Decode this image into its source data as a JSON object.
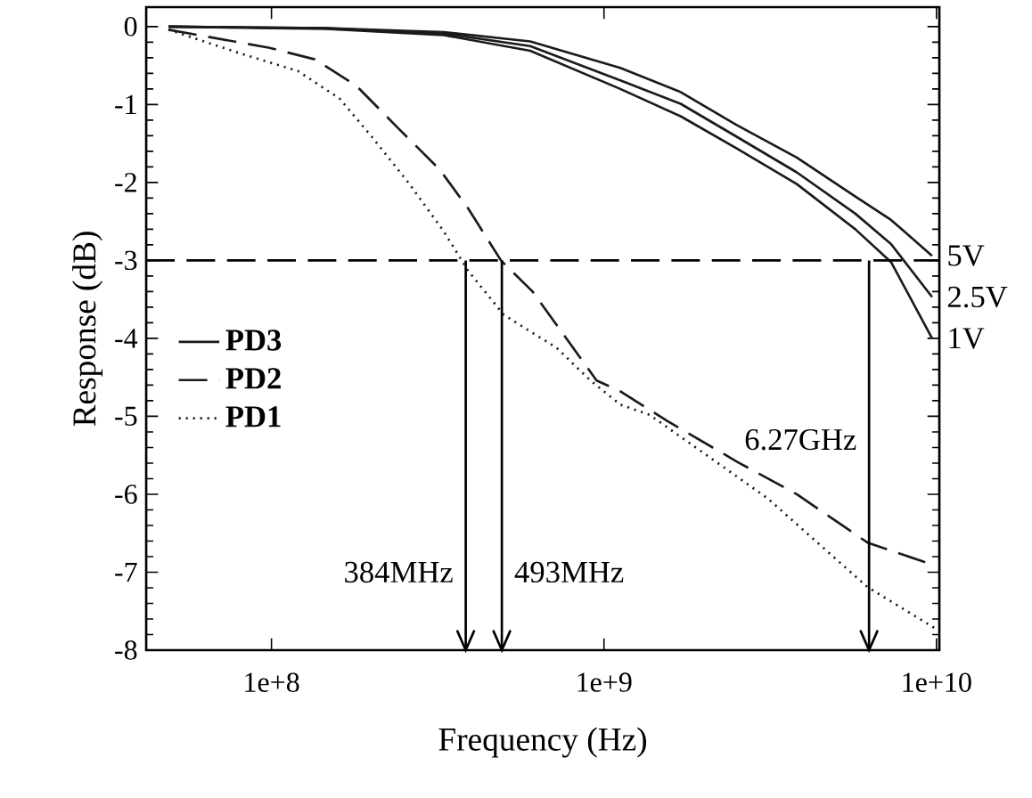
{
  "chart_data": {
    "type": "line",
    "xlabel": "Frequency (Hz)",
    "ylabel": "Response (dB)",
    "log": "x",
    "xlim": [
      42000000,
      10200000000
    ],
    "ylim": [
      -8,
      0.25
    ],
    "xticks": [
      {
        "value": 100000000,
        "label": "1e+8"
      },
      {
        "value": 1000000000,
        "label": "1e+9"
      },
      {
        "value": 10000000000,
        "label": "1e+10"
      }
    ],
    "yticks": [
      0,
      -1,
      -2,
      -3,
      -4,
      -5,
      -6,
      -7,
      -8
    ],
    "legend": "left",
    "grid": false,
    "series": [
      {
        "name": "PD3",
        "color": "#1a1a1a",
        "line_style": "solid",
        "x": [
          49000000,
          146000000,
          330000000,
          600000000,
          1120000000,
          1700000000,
          2500000000,
          3800000000,
          5700000000,
          7300000000,
          9700000000
        ],
        "values": [
          0,
          -0.02,
          -0.07,
          -0.19,
          -0.53,
          -0.84,
          -1.26,
          -1.68,
          -2.18,
          -2.48,
          -2.94
        ]
      },
      {
        "color": "#1a1a1a",
        "line_style": "solid",
        "x": [
          49000000,
          146000000,
          330000000,
          600000000,
          1120000000,
          1700000000,
          2500000000,
          3800000000,
          5700000000,
          7300000000,
          9700000000
        ],
        "values": [
          0,
          -0.02,
          -0.09,
          -0.25,
          -0.69,
          -0.99,
          -1.41,
          -1.87,
          -2.4,
          -2.79,
          -3.47
        ]
      },
      {
        "color": "#1a1a1a",
        "line_style": "solid",
        "x": [
          49000000,
          146000000,
          330000000,
          600000000,
          1120000000,
          1700000000,
          2500000000,
          3800000000,
          5700000000,
          7300000000,
          9700000000
        ],
        "values": [
          0,
          -0.03,
          -0.11,
          -0.31,
          -0.8,
          -1.15,
          -1.56,
          -2.02,
          -2.6,
          -3.02,
          -4.0
        ]
      },
      {
        "name": "PD2",
        "color": "#1a1a1a",
        "line_style": "dashed",
        "x": [
          49000000,
          98000000,
          135000000,
          180000000,
          240000000,
          320000000,
          390000000,
          490000000,
          610000000,
          750000000,
          950000000,
          1120000000,
          1550000000,
          2530000000,
          3800000000,
          6200000000,
          9500000000
        ],
        "values": [
          -0.04,
          -0.27,
          -0.42,
          -0.76,
          -1.3,
          -1.83,
          -2.33,
          -3,
          -3.4,
          -3.93,
          -4.54,
          -4.68,
          -5.06,
          -5.59,
          -6.0,
          -6.62,
          -6.89
        ]
      },
      {
        "name": "PD1",
        "color": "#1a1a1a",
        "line_style": "dotted",
        "x": [
          49000000,
          80000000,
          120000000,
          160000000,
          200000000,
          260000000,
          330000000,
          390000000,
          500000000,
          610000000,
          720000000,
          910000000,
          1120000000,
          1370000000,
          2070000000,
          3100000000,
          6200000000,
          9900000000
        ],
        "values": [
          -0.04,
          -0.34,
          -0.57,
          -0.92,
          -1.41,
          -2.02,
          -2.63,
          -3.13,
          -3.7,
          -3.93,
          -4.12,
          -4.54,
          -4.85,
          -4.98,
          -5.52,
          -6.05,
          -7.19,
          -7.72
        ]
      }
    ],
    "ref_lines": [
      {
        "axis": "y",
        "value": -3,
        "line_style": "dashed"
      },
      {
        "axis": "x",
        "value": 384000000,
        "label": "384MHz"
      },
      {
        "axis": "x",
        "value": 493000000,
        "label": "493MHz"
      },
      {
        "axis": "x",
        "value": 6270000000,
        "label": "6.27GHz"
      }
    ],
    "annotations": [
      "5V",
      "2.5V",
      "1V"
    ]
  }
}
